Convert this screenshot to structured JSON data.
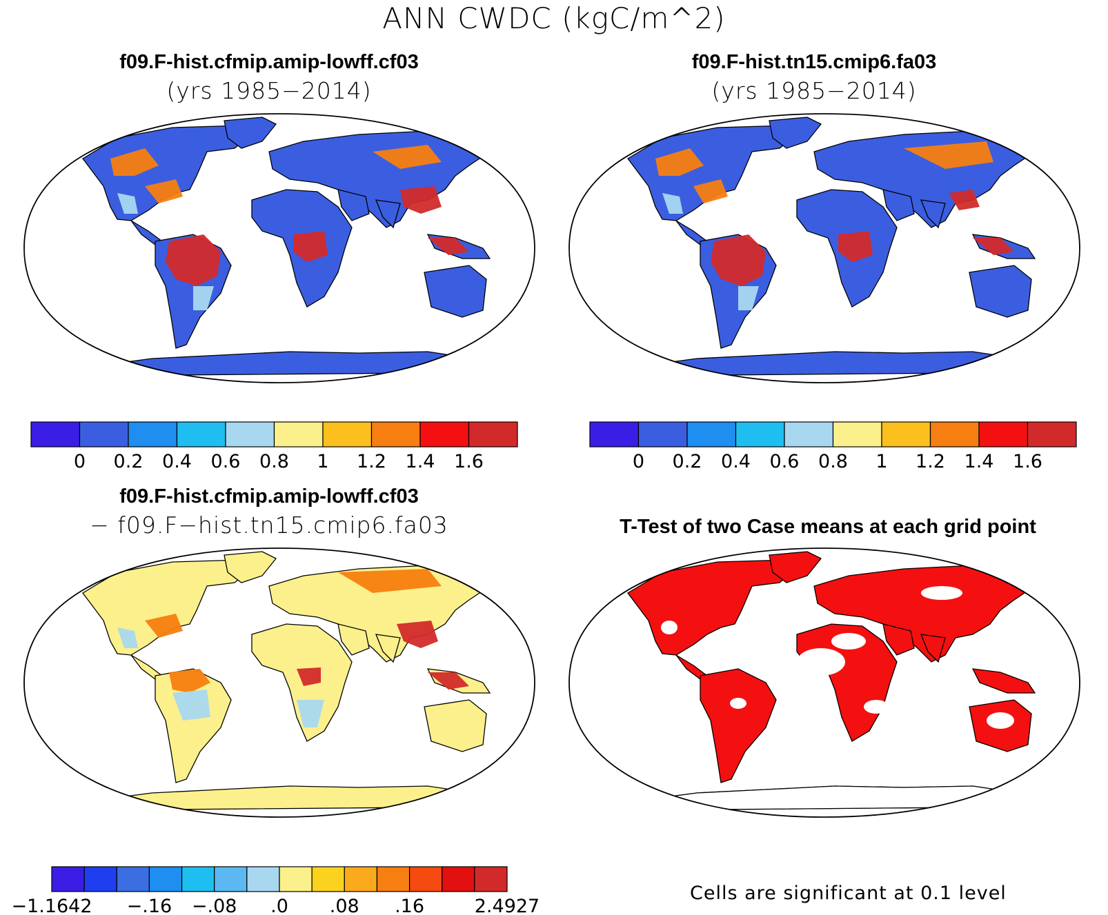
{
  "figure": {
    "title": "ANN CWDC (kgC/m^2)"
  },
  "panels": {
    "top_left": {
      "title": "f09.F-hist.cfmip.amip-lowff.cf03",
      "subtitle": "(yrs 1985−2014)"
    },
    "top_right": {
      "title": "f09.F-hist.tn15.cmip6.fa03",
      "subtitle": "(yrs 1985−2014)"
    },
    "bottom_left": {
      "title": "f09.F-hist.cfmip.amip-lowff.cf03",
      "subtitle": "− f09.F−hist.tn15.cmip6.fa03"
    },
    "bottom_right": {
      "title": "T-Test of two Case means at each grid point",
      "note": "Cells are significant at 0.1 level"
    }
  },
  "colorbars": {
    "absolute": {
      "colors": [
        "#3b1ee6",
        "#3b5ee0",
        "#1e8ef0",
        "#1ebff0",
        "#a8d8f0",
        "#fbf08c",
        "#fbc01e",
        "#f77e10",
        "#f41010",
        "#d22a2a"
      ],
      "labels": [
        "0",
        "0.2",
        "0.4",
        "0.6",
        "0.8",
        "1",
        "1.2",
        "1.4",
        "1.6"
      ]
    },
    "difference": {
      "colors": [
        "#3b1ee6",
        "#1e3ef0",
        "#3b6ee0",
        "#1e8ef0",
        "#1ebff0",
        "#5cb8f0",
        "#a8d8f0",
        "#fbf08c",
        "#fbd21e",
        "#fbaa1e",
        "#f77e10",
        "#f54a10",
        "#e21010",
        "#d22a2a"
      ],
      "labels": [
        "−1.1642",
        "−.16",
        "−.08",
        ".0",
        ".08",
        ".16",
        "2.4927"
      ]
    }
  },
  "map_fill": {
    "top_left": "#3b5ee0",
    "top_right": "#3b5ee0",
    "bottom_left": "#fbf08c",
    "bottom_right": "#f41010",
    "hot": "#d22a2a",
    "warm": "#f77e10",
    "pale": "#a8d8f0"
  }
}
